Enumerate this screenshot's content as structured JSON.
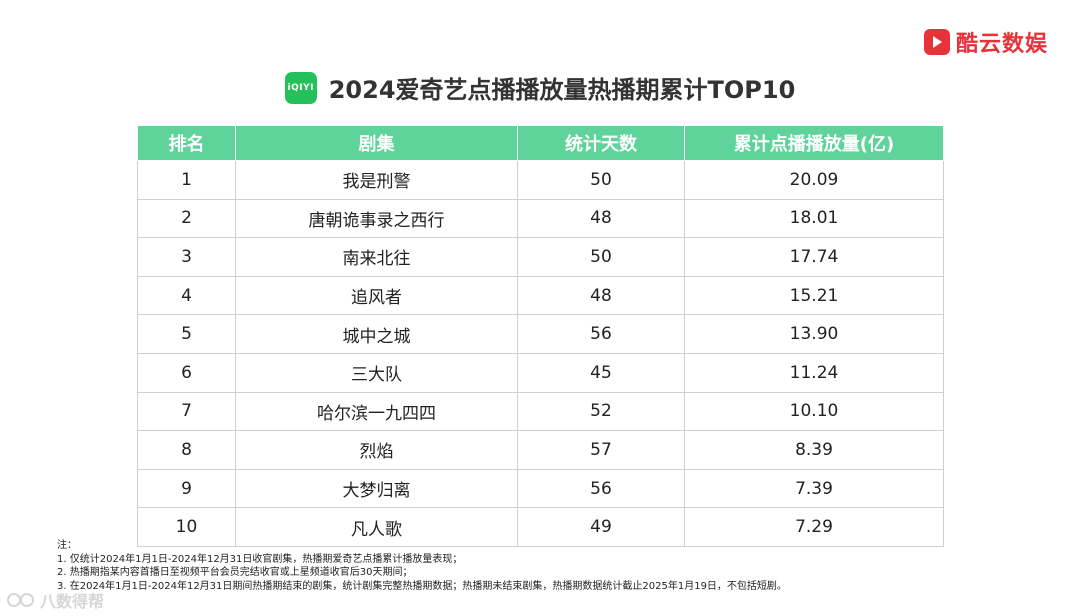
{
  "brand": {
    "name": "酷云数娱",
    "color": "#e8323a"
  },
  "logo": {
    "text": "iQIYI",
    "color": "#24c15a"
  },
  "title": "2024爱奇艺点播播放量热播期累计TOP10",
  "table": {
    "header_color": "#5fd39a",
    "headers": [
      "排名",
      "剧集",
      "统计天数",
      "累计点播播放量(亿)"
    ],
    "rows": [
      [
        "1",
        "我是刑警",
        "50",
        "20.09"
      ],
      [
        "2",
        "唐朝诡事录之西行",
        "48",
        "18.01"
      ],
      [
        "3",
        "南来北往",
        "50",
        "17.74"
      ],
      [
        "4",
        "追风者",
        "48",
        "15.21"
      ],
      [
        "5",
        "城中之城",
        "56",
        "13.90"
      ],
      [
        "6",
        "三大队",
        "45",
        "11.24"
      ],
      [
        "7",
        "哈尔滨一九四四",
        "52",
        "10.10"
      ],
      [
        "8",
        "烈焰",
        "57",
        "8.39"
      ],
      [
        "9",
        "大梦归离",
        "56",
        "7.39"
      ],
      [
        "10",
        "凡人歌",
        "49",
        "7.29"
      ]
    ]
  },
  "notes": {
    "heading": "注：",
    "items": [
      "1. 仅统计2024年1月1日-2024年12月31日收官剧集，热播期爱奇艺点播累计播放量表现；",
      "2. 热播期指某内容首播日至视频平台会员完结收官或上星频道收官后30天期间；",
      "3. 在2024年1月1日-2024年12月31日期间热播期结束的剧集，统计剧集完整热播期数据；热播期未结束剧集，热播期数据统计截止2025年1月19日，不包括短剧。"
    ]
  },
  "watermark": "八数得帮"
}
